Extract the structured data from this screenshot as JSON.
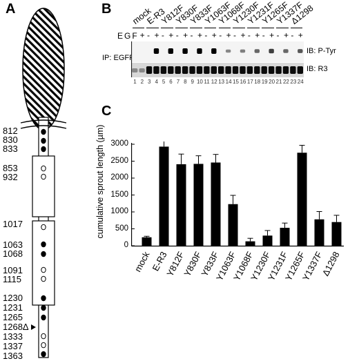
{
  "panels": {
    "A": "A",
    "B": "B",
    "C": "C"
  },
  "panelA": {
    "residues": [
      "812",
      "830",
      "833",
      "853",
      "932",
      "1017",
      "1063",
      "1068",
      "1091",
      "1115",
      "1230",
      "1231",
      "1265",
      "1268Δ",
      "1333",
      "1337",
      "1363"
    ]
  },
  "panelB": {
    "samples": [
      "mock",
      "E-R3",
      "Y812F",
      "Y830F",
      "Y833F",
      "Y1063F",
      "Y1068F",
      "Y1230F",
      "Y1231F",
      "Y1265F",
      "Y1337F",
      "Δ1298"
    ],
    "egf_label": "EGF",
    "signs": [
      "-",
      "+"
    ],
    "ip_label": "IP: EGFR",
    "ib_top": "IB: P-Tyr",
    "ib_bottom": "IB: R3",
    "lane_numbers": [
      "1",
      "2",
      "3",
      "4",
      "5",
      "6",
      "7",
      "8",
      "9",
      "10",
      "11",
      "12",
      "13",
      "14",
      "15",
      "16",
      "17",
      "18",
      "19",
      "20",
      "21",
      "22",
      "23",
      "24"
    ]
  },
  "chart_data": {
    "type": "bar",
    "ylabel": "cumulative sprout length (µm)",
    "ylim": [
      0,
      3000
    ],
    "yticks": [
      "0",
      "500",
      "1000",
      "1500",
      "2000",
      "2500",
      "3000"
    ],
    "categories": [
      "mock",
      "E-R3",
      "Y812F",
      "Y830F",
      "Y833F",
      "Y1063F",
      "Y1068F",
      "Y1230F",
      "Y1231F",
      "Y1265F",
      "Y1337F",
      "Δ1298"
    ],
    "values": [
      250,
      2930,
      2410,
      2420,
      2460,
      1230,
      130,
      300,
      530,
      2750,
      780,
      700
    ],
    "errors": [
      30,
      180,
      300,
      240,
      240,
      260,
      90,
      150,
      140,
      220,
      230,
      200
    ]
  }
}
